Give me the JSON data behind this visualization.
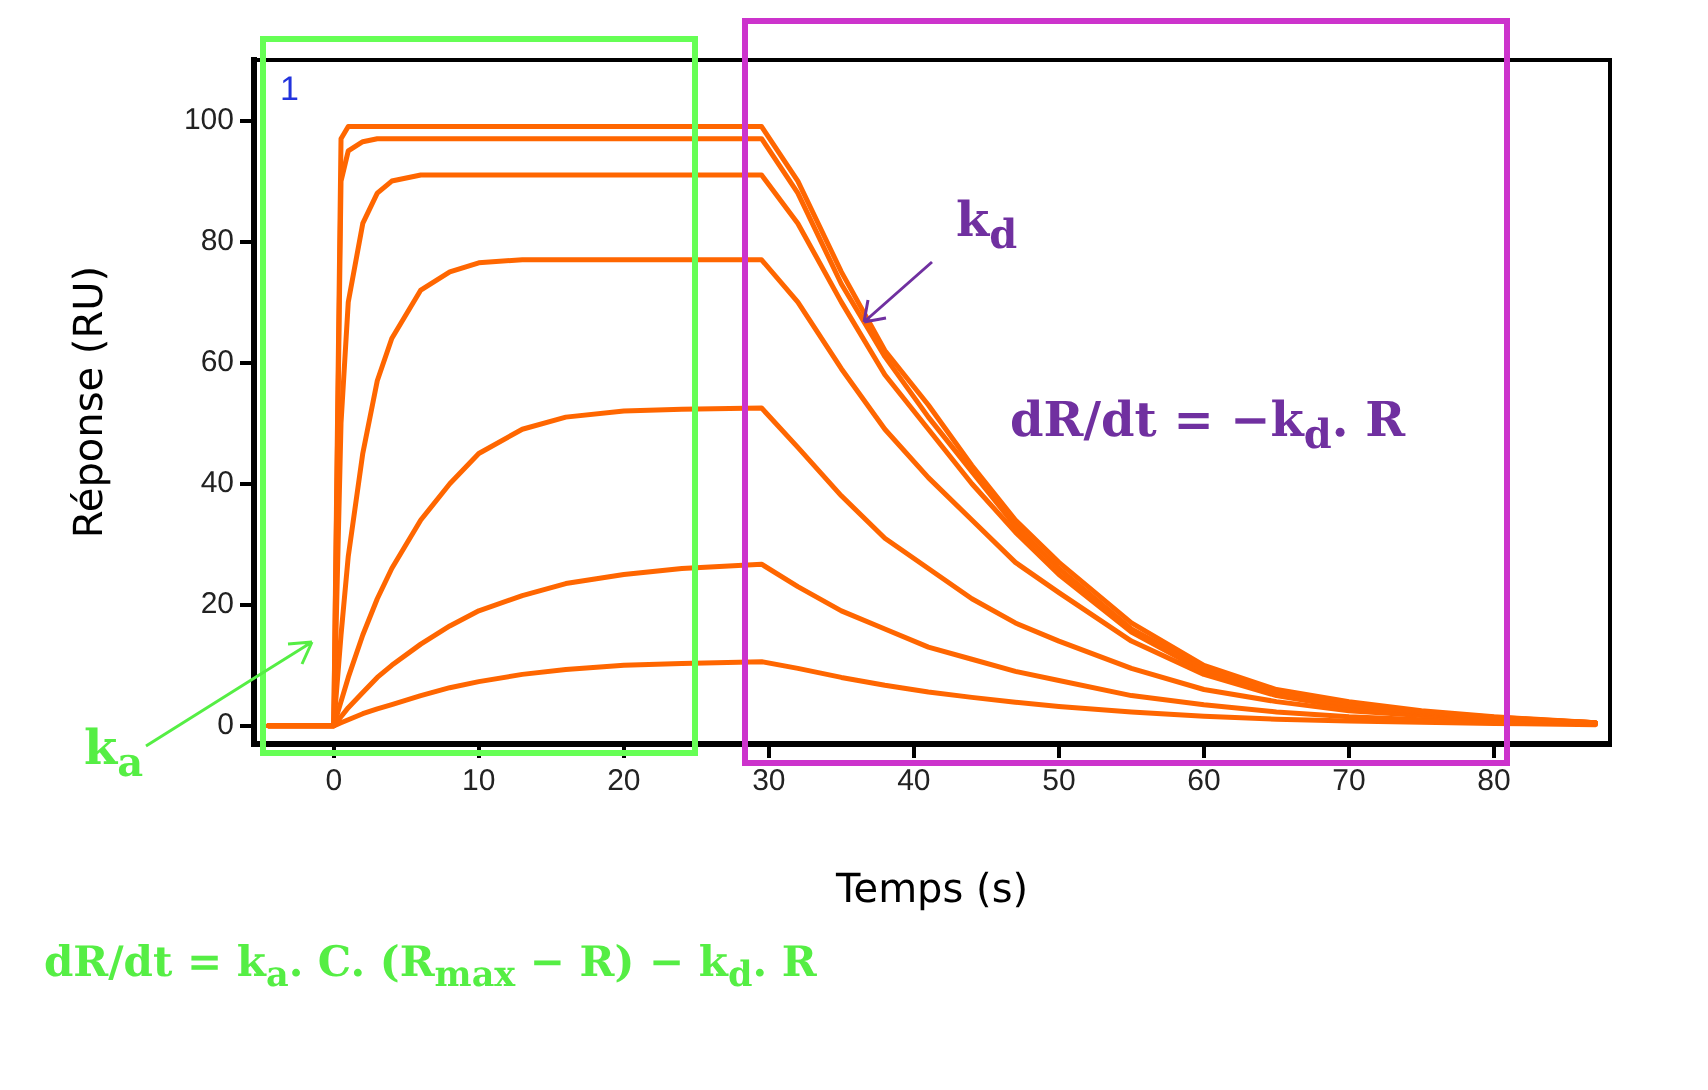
{
  "chart_data": {
    "type": "line",
    "xlabel": "Temps (s)",
    "ylabel": "Réponse (RU)",
    "xlim": [
      -5.5,
      88
    ],
    "ylim": [
      -3,
      110
    ],
    "xticks": [
      0,
      10,
      20,
      30,
      40,
      50,
      60,
      70,
      80
    ],
    "yticks": [
      0,
      20,
      40,
      60,
      80,
      100
    ],
    "grid": false,
    "legend": false,
    "marker": "none",
    "line_style": "solid",
    "x": [
      -4.5,
      0,
      0.5,
      1,
      2,
      3,
      4,
      6,
      8,
      10,
      13,
      16,
      20,
      24,
      29.5,
      32,
      35,
      38,
      41,
      44,
      47,
      50,
      55,
      60,
      65,
      70,
      75,
      80,
      87
    ],
    "series": [
      {
        "color": "#ff6600",
        "values": [
          0,
          0,
          97,
          99,
          99,
          99,
          99,
          99,
          99,
          99,
          99,
          99,
          99,
          99,
          99,
          90,
          75,
          62,
          53,
          43,
          34,
          27,
          17,
          10,
          6,
          4,
          2.5,
          1.5,
          0.5
        ]
      },
      {
        "color": "#ff6600",
        "values": [
          0,
          0,
          90,
          95,
          96.5,
          97,
          97,
          97,
          97,
          97,
          97,
          97,
          97,
          97,
          97,
          88,
          73,
          61,
          51,
          42,
          33,
          26,
          16,
          9.5,
          5.5,
          3.5,
          2.3,
          1.4,
          0.5
        ]
      },
      {
        "color": "#ff6600",
        "values": [
          0,
          0,
          50,
          70,
          83,
          88,
          90,
          91,
          91,
          91,
          91,
          91,
          91,
          91,
          91,
          83,
          70,
          58,
          49,
          40,
          32,
          25,
          15.5,
          9,
          5.5,
          3.3,
          2.2,
          1.3,
          0.5
        ]
      },
      {
        "color": "#ff6600",
        "values": [
          0,
          0,
          15,
          28,
          45,
          57,
          64,
          72,
          75,
          76.5,
          77,
          77,
          77,
          77,
          77,
          70,
          59,
          49,
          41,
          34,
          27,
          22,
          14,
          8.5,
          5,
          3,
          2,
          1.2,
          0.5
        ]
      },
      {
        "color": "#ff6600",
        "values": [
          0,
          0,
          4,
          8,
          15,
          21,
          26,
          34,
          40,
          45,
          49,
          51,
          52,
          52.3,
          52.5,
          46,
          38,
          31,
          26,
          21,
          17,
          14,
          9.5,
          6,
          4,
          2.5,
          1.7,
          1,
          0.4
        ]
      },
      {
        "color": "#ff6600",
        "values": [
          0,
          0,
          1.5,
          3,
          5.5,
          8,
          10,
          13.5,
          16.5,
          19,
          21.5,
          23.5,
          25,
          26,
          26.7,
          23,
          19,
          16,
          13,
          11,
          9,
          7.5,
          5,
          3.5,
          2.3,
          1.5,
          1,
          0.7,
          0.3
        ]
      },
      {
        "color": "#ff6600",
        "values": [
          0,
          0,
          0.5,
          1,
          2,
          2.8,
          3.5,
          5,
          6.3,
          7.3,
          8.5,
          9.3,
          10,
          10.3,
          10.6,
          9.5,
          8,
          6.7,
          5.6,
          4.7,
          3.9,
          3.2,
          2.3,
          1.6,
          1.1,
          0.8,
          0.6,
          0.4,
          0.2
        ]
      }
    ],
    "annotations": [
      "1",
      "k$_{d}$",
      "dR/dt = −k$_{d}$. R",
      "k$_{a}$",
      "dR/dt = k$_{a}$. C. (R$_{max}$ − R) − k$_{d}$. R"
    ]
  }
}
